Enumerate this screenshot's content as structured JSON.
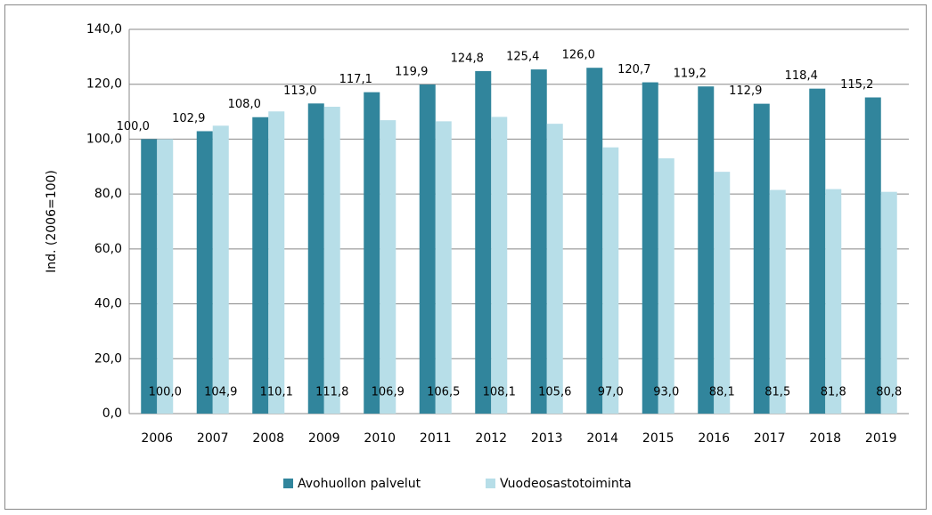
{
  "chart_data": {
    "type": "bar",
    "y_label": "Ind. (2006=100)",
    "categories": [
      "2006",
      "2007",
      "2008",
      "2009",
      "2010",
      "2011",
      "2012",
      "2013",
      "2014",
      "2015",
      "2016",
      "2017",
      "2018",
      "2019"
    ],
    "series": [
      {
        "name": "Avohuollon palvelut",
        "color": "#31859c",
        "values": [
          100.0,
          102.9,
          108.0,
          113.0,
          117.1,
          119.9,
          124.8,
          125.4,
          126.0,
          120.7,
          119.2,
          112.9,
          118.4,
          115.2
        ],
        "value_labels": [
          "100,0",
          "102,9",
          "108,0",
          "113,0",
          "117,1",
          "119,9",
          "124,8",
          "125,4",
          "126,0",
          "120,7",
          "119,2",
          "112,9",
          "118,4",
          "115,2"
        ]
      },
      {
        "name": "Vuodeosastotoiminta",
        "color": "#b7dee8",
        "values": [
          100.0,
          104.9,
          110.1,
          111.8,
          106.9,
          106.5,
          108.1,
          105.6,
          97.0,
          93.0,
          88.1,
          81.5,
          81.8,
          80.8
        ],
        "value_labels": [
          "100,0",
          "104,9",
          "110,1",
          "111,8",
          "106,9",
          "106,5",
          "108,1",
          "105,6",
          "97,0",
          "93,0",
          "88,1",
          "81,5",
          "81,8",
          "80,8"
        ]
      }
    ],
    "ylim": [
      0,
      140
    ],
    "yticks": [
      {
        "value": 0,
        "label": "0,0"
      },
      {
        "value": 20,
        "label": "20,0"
      },
      {
        "value": 40,
        "label": "40,0"
      },
      {
        "value": 60,
        "label": "60,0"
      },
      {
        "value": 80,
        "label": "80,0"
      },
      {
        "value": 100,
        "label": "100,0"
      },
      {
        "value": 120,
        "label": "120,0"
      },
      {
        "value": 140,
        "label": "140,0"
      }
    ],
    "grid": true,
    "legend": "bottom"
  }
}
